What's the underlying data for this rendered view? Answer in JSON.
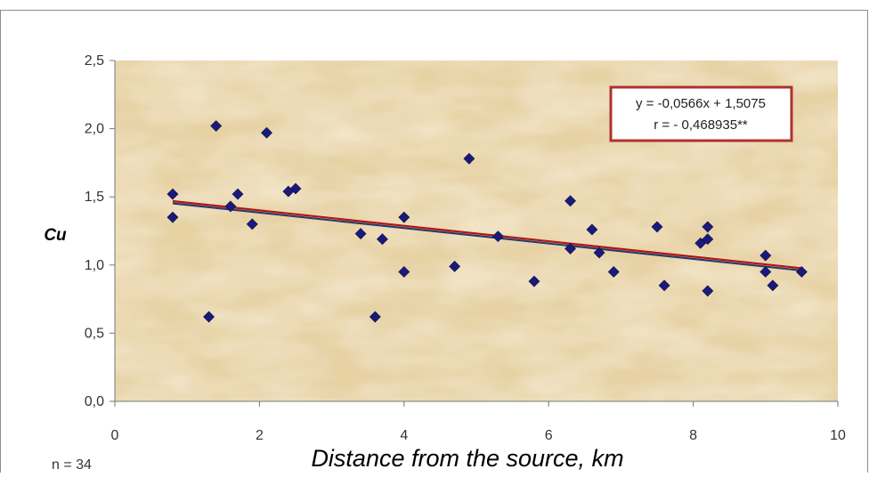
{
  "chart_data": {
    "type": "scatter",
    "xlabel": "Distance from the source, km",
    "ylabel": "Cu",
    "xlim": [
      0,
      10
    ],
    "ylim": [
      0.0,
      2.5
    ],
    "x_ticks": [
      "0",
      "2",
      "4",
      "6",
      "8",
      "10"
    ],
    "y_ticks": [
      "0,0",
      "0,5",
      "1,0",
      "1,5",
      "2,0",
      "2,5"
    ],
    "grid": false,
    "legend": "none",
    "note": "n = 34",
    "annotation": {
      "line1": "y = -0,0566x + 1,5075",
      "line2": "r = - 0,468935**",
      "position": "top-right"
    },
    "trendline": {
      "slope": -0.0566,
      "intercept": 1.5075,
      "x_range": [
        0.8,
        9.5
      ]
    },
    "series": [
      {
        "points": [
          [
            0.8,
            1.52
          ],
          [
            0.8,
            1.35
          ],
          [
            1.3,
            0.62
          ],
          [
            1.4,
            2.02
          ],
          [
            1.6,
            1.43
          ],
          [
            1.7,
            1.52
          ],
          [
            1.9,
            1.3
          ],
          [
            2.1,
            1.97
          ],
          [
            2.4,
            1.54
          ],
          [
            2.5,
            1.56
          ],
          [
            3.4,
            1.23
          ],
          [
            3.6,
            0.62
          ],
          [
            3.7,
            1.19
          ],
          [
            4.0,
            1.35
          ],
          [
            4.0,
            0.95
          ],
          [
            4.7,
            0.99
          ],
          [
            4.9,
            1.78
          ],
          [
            5.3,
            1.21
          ],
          [
            5.8,
            0.88
          ],
          [
            6.3,
            1.47
          ],
          [
            6.3,
            1.12
          ],
          [
            6.6,
            1.26
          ],
          [
            6.7,
            1.09
          ],
          [
            6.9,
            0.95
          ],
          [
            7.5,
            1.28
          ],
          [
            7.6,
            0.85
          ],
          [
            8.1,
            1.16
          ],
          [
            8.2,
            1.28
          ],
          [
            8.2,
            1.19
          ],
          [
            8.2,
            0.81
          ],
          [
            9.0,
            1.07
          ],
          [
            9.0,
            0.95
          ],
          [
            9.1,
            0.85
          ],
          [
            9.5,
            0.95
          ]
        ]
      }
    ],
    "colors": {
      "marker": "#1a1a7a",
      "trendline_top": "#b01515",
      "trendline_bottom": "#2b3b6b",
      "annotation_border": "#b03030",
      "plot_background": "#e8d3a6"
    }
  }
}
